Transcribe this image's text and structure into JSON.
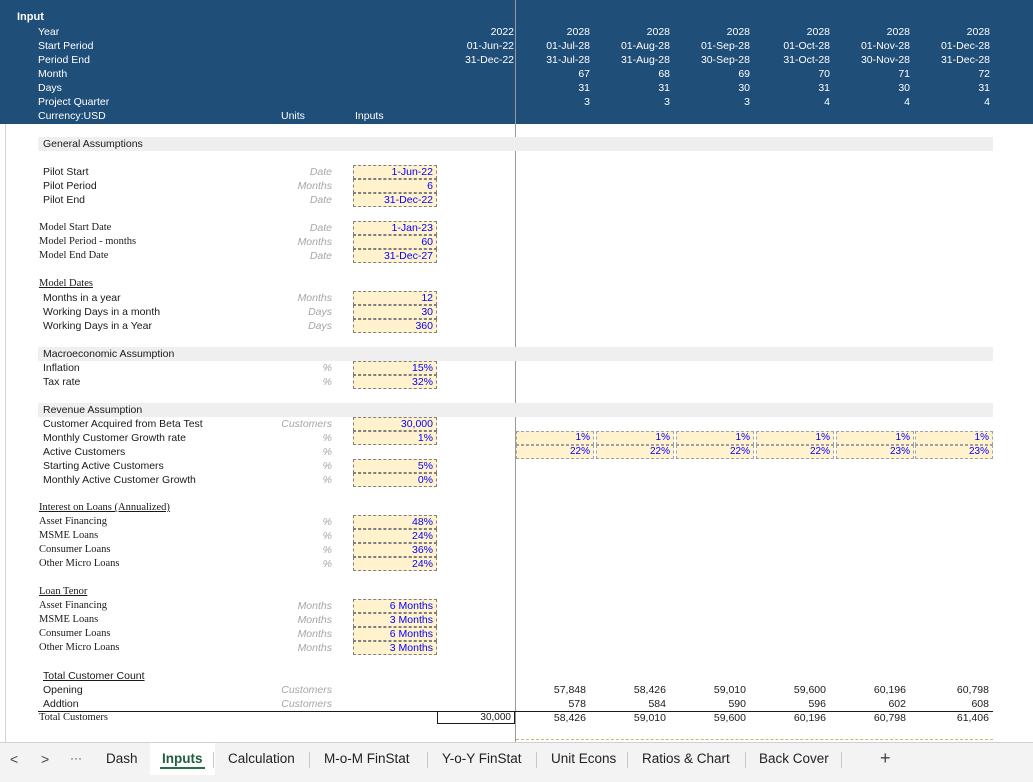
{
  "header": {
    "title": "Input",
    "labels": [
      "Year",
      "Start Period",
      "Period End",
      "Month",
      "Days",
      "Project Quarter",
      "Currency:USD"
    ],
    "units_label": "Units",
    "inputs_label": "Inputs",
    "columns": [
      {
        "year": "2022",
        "start": "01-Jun-22",
        "end": "31-Dec-22",
        "month": "",
        "days": "",
        "quarter": ""
      },
      {
        "year": "2028",
        "start": "01-Jul-28",
        "end": "31-Jul-28",
        "month": "67",
        "days": "31",
        "quarter": "3"
      },
      {
        "year": "2028",
        "start": "01-Aug-28",
        "end": "31-Aug-28",
        "month": "68",
        "days": "31",
        "quarter": "3"
      },
      {
        "year": "2028",
        "start": "01-Sep-28",
        "end": "30-Sep-28",
        "month": "69",
        "days": "30",
        "quarter": "3"
      },
      {
        "year": "2028",
        "start": "01-Oct-28",
        "end": "31-Oct-28",
        "month": "70",
        "days": "31",
        "quarter": "4"
      },
      {
        "year": "2028",
        "start": "01-Nov-28",
        "end": "30-Nov-28",
        "month": "71",
        "days": "30",
        "quarter": "4"
      },
      {
        "year": "2028",
        "start": "01-Dec-28",
        "end": "31-Dec-28",
        "month": "72",
        "days": "31",
        "quarter": "4"
      }
    ]
  },
  "general": {
    "title": "General Assumptions",
    "pilot": [
      {
        "label": "Pilot  Start",
        "unit": "Date",
        "value": "1-Jun-22"
      },
      {
        "label": "Pilot Period",
        "unit": "Months",
        "value": "6"
      },
      {
        "label": "Pilot End",
        "unit": "Date",
        "value": "31-Dec-22"
      }
    ],
    "model": [
      {
        "label": "Model Start Date",
        "unit": "Date",
        "value": "1-Jan-23"
      },
      {
        "label": "Model Period - months",
        "unit": "Months",
        "value": "60"
      },
      {
        "label": "Model End Date",
        "unit": "Date",
        "value": "31-Dec-27"
      }
    ],
    "model_dates_title": "Model Dates",
    "model_dates": [
      {
        "label": "Months in a year",
        "unit": "Months",
        "value": "12"
      },
      {
        "label": "Working Days in a month",
        "unit": "Days",
        "value": "30"
      },
      {
        "label": "Working Days in a Year",
        "unit": "Days",
        "value": "360"
      }
    ]
  },
  "macro": {
    "title": "Macroeconomic Assumption",
    "rows": [
      {
        "label": "Inflation",
        "unit": "%",
        "value": "15%"
      },
      {
        "label": "Tax rate",
        "unit": "%",
        "value": "32%"
      }
    ]
  },
  "revenue": {
    "title": "Revenue Assumption",
    "rows": [
      {
        "label": "Customer Acquired from Beta Test",
        "unit": "Customers",
        "value": "30,000"
      },
      {
        "label": "Monthly Customer Growth rate",
        "unit": "%",
        "value": "1%"
      },
      {
        "label": "Active Customers",
        "unit": "%",
        "value": ""
      },
      {
        "label": "Starting Active Customers",
        "unit": "%",
        "value": "5%"
      },
      {
        "label": "Monthly Active Customer Growth",
        "unit": "%",
        "value": "0%"
      }
    ],
    "growth_row": [
      "1%",
      "1%",
      "1%",
      "1%",
      "1%",
      "1%"
    ],
    "active_row": [
      "22%",
      "22%",
      "22%",
      "22%",
      "23%",
      "23%"
    ]
  },
  "interest": {
    "title": "Interest on Loans (Annualized)",
    "rows": [
      {
        "label": "Asset Financing",
        "unit": "%",
        "value": "48%"
      },
      {
        "label": "MSME Loans",
        "unit": "%",
        "value": "24%"
      },
      {
        "label": "Consumer Loans",
        "unit": "%",
        "value": "36%"
      },
      {
        "label": "Other Micro Loans",
        "unit": "%",
        "value": "24%"
      }
    ]
  },
  "tenor": {
    "title": "Loan Tenor",
    "rows": [
      {
        "label": "Asset Financing",
        "unit": "Months",
        "value": "6 Months"
      },
      {
        "label": "MSME Loans",
        "unit": "Months",
        "value": "3 Months"
      },
      {
        "label": "Consumer Loans",
        "unit": "Months",
        "value": "6 Months"
      },
      {
        "label": "Other Micro Loans",
        "unit": "Months",
        "value": "3 Months"
      }
    ]
  },
  "totals": {
    "title": "Total Customer Count",
    "opening_label": "Opening",
    "addition_label": "Addtion",
    "total_label": "Total Customers",
    "opening_unit": "Customers",
    "addition_unit": "Customers",
    "total_input": "30,000",
    "opening": [
      "57,848",
      "58,426",
      "59,010",
      "59,600",
      "60,196",
      "60,798"
    ],
    "addition": [
      "578",
      "584",
      "590",
      "596",
      "602",
      "608"
    ],
    "total": [
      "58,426",
      "59,010",
      "59,600",
      "60,196",
      "60,798",
      "61,406"
    ]
  },
  "tabs": {
    "nav_prev": "<",
    "nav_next": ">",
    "more": "···",
    "items": [
      "Dash",
      "Inputs",
      "Calculation",
      "M-o-M FinStat",
      "Y-o-Y FinStat",
      "Unit Econs",
      "Ratios & Chart",
      "Back Cover"
    ],
    "active": "Inputs",
    "add": "+"
  }
}
